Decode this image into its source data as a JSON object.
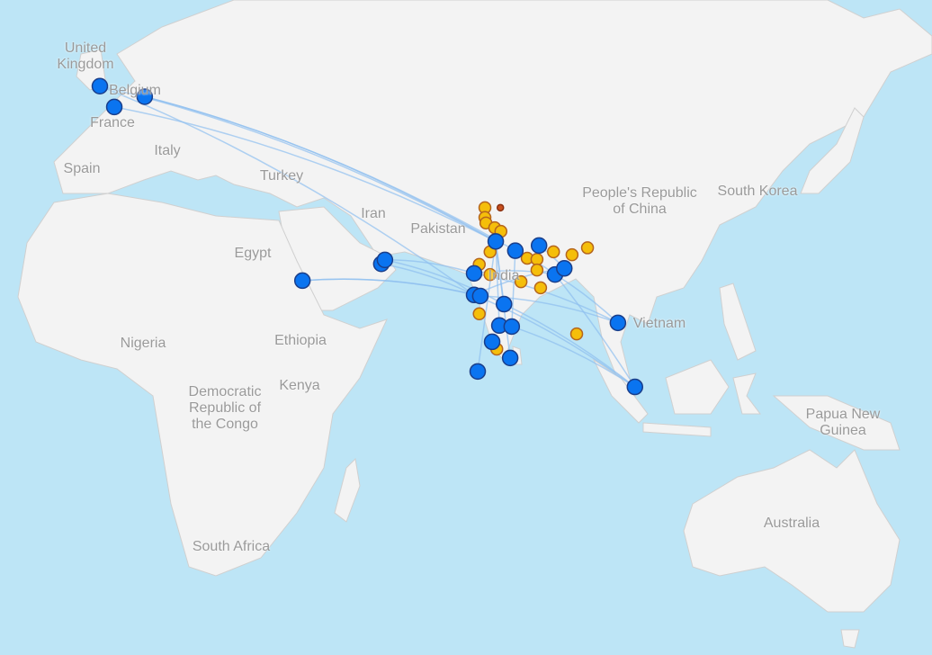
{
  "map": {
    "projection": "mercator",
    "colors": {
      "ocean": "#bde5f6",
      "land": "#f3f3f3",
      "blue_marker": "#0a74f0",
      "yellow_marker": "#f5be0a",
      "red_marker": "#c8501e",
      "route": "#8fbff0"
    },
    "labels": [
      "United\nKingdom",
      "Belgium",
      "France",
      "Italy",
      "Spain",
      "Turkey",
      "Iran",
      "Pakistan",
      "India",
      "Egypt",
      "Ethiopia",
      "Nigeria",
      "Kenya",
      "Democratic\nRepublic of\nthe Congo",
      "South Africa",
      "People's Republic\nof China",
      "South Korea",
      "Vietnam",
      "Papua New\nGuinea",
      "Australia"
    ],
    "blue_markers": [
      [
        0,
        51.1
      ],
      [
        2.8,
        48.5
      ],
      [
        8.7,
        49.8
      ],
      [
        39.3,
        21.4
      ],
      [
        54.6,
        24.4
      ],
      [
        55.3,
        25.1
      ],
      [
        76.8,
        28.3
      ],
      [
        80.6,
        26.7
      ],
      [
        85.2,
        27.6
      ],
      [
        72.6,
        22.7
      ],
      [
        72.6,
        18.8
      ],
      [
        73.8,
        18.6
      ],
      [
        78.4,
        17.1
      ],
      [
        88.3,
        22.5
      ],
      [
        90.1,
        23.6
      ],
      [
        77.5,
        13.1
      ],
      [
        79.9,
        12.9
      ],
      [
        76.1,
        10.0
      ],
      [
        79.6,
        6.9
      ],
      [
        73.3,
        4.3
      ],
      [
        100.5,
        13.6
      ],
      [
        103.8,
        1.3
      ]
    ],
    "yellow_markers": [
      [
        74.7,
        33.9
      ],
      [
        74.7,
        32.3
      ],
      [
        74.9,
        31.4
      ],
      [
        76.6,
        30.6
      ],
      [
        77.8,
        30.0
      ],
      [
        75.7,
        26.5
      ],
      [
        73.6,
        24.3
      ],
      [
        75.7,
        22.5
      ],
      [
        82.9,
        25.4
      ],
      [
        84.8,
        25.2
      ],
      [
        88.0,
        26.5
      ],
      [
        91.6,
        26.0
      ],
      [
        94.6,
        27.2
      ],
      [
        84.8,
        23.3
      ],
      [
        81.7,
        21.2
      ],
      [
        85.5,
        20.1
      ],
      [
        73.6,
        15.3
      ],
      [
        77.0,
        8.6
      ],
      [
        92.5,
        11.5
      ]
    ],
    "red_markers": [
      [
        77.7,
        33.9
      ]
    ],
    "routes": [
      [
        0,
        6
      ],
      [
        1,
        6
      ],
      [
        2,
        6
      ],
      [
        2,
        7
      ],
      [
        0,
        10
      ],
      [
        3,
        10
      ],
      [
        3,
        11
      ],
      [
        4,
        10
      ],
      [
        5,
        9
      ],
      [
        5,
        12
      ],
      [
        6,
        12
      ],
      [
        6,
        15
      ],
      [
        6,
        18
      ],
      [
        7,
        13
      ],
      [
        8,
        14
      ],
      [
        9,
        20
      ],
      [
        10,
        21
      ],
      [
        11,
        20
      ],
      [
        13,
        21
      ],
      [
        13,
        20
      ],
      [
        6,
        19
      ],
      [
        12,
        21
      ],
      [
        16,
        21
      ],
      [
        9,
        13
      ],
      [
        10,
        14
      ],
      [
        7,
        16
      ]
    ]
  }
}
